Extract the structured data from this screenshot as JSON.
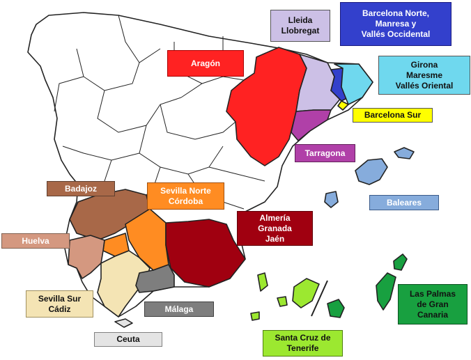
{
  "regions": [
    {
      "id": "lleida-llobregat",
      "label": "Lleida\nLlobregat",
      "color": "#ccc0e6"
    },
    {
      "id": "barcelona-norte",
      "label": "Barcelona Norte,\nManresa y\nVallés Occidental",
      "color": "#3340cc"
    },
    {
      "id": "aragon",
      "label": "Aragón",
      "color": "#ff2222"
    },
    {
      "id": "girona",
      "label": "Girona\nMaresme\nVallés Oriental",
      "color": "#6fd8ee"
    },
    {
      "id": "barcelona-sur",
      "label": "Barcelona Sur",
      "color": "#ffff00"
    },
    {
      "id": "tarragona",
      "label": "Tarragona",
      "color": "#b040a8"
    },
    {
      "id": "baleares",
      "label": "Baleares",
      "color": "#86acdc"
    },
    {
      "id": "badajoz",
      "label": "Badajoz",
      "color": "#a86848"
    },
    {
      "id": "sevilla-norte",
      "label": "Sevilla Norte\nCórdoba",
      "color": "#ff8c22"
    },
    {
      "id": "almeria",
      "label": "Almería\nGranada\nJaén",
      "color": "#a00010"
    },
    {
      "id": "huelva",
      "label": "Huelva",
      "color": "#d49880"
    },
    {
      "id": "sevilla-sur",
      "label": "Sevilla Sur\nCádiz",
      "color": "#f4e4b4"
    },
    {
      "id": "malaga",
      "label": "Málaga",
      "color": "#7e7e7e"
    },
    {
      "id": "ceuta",
      "label": "Ceuta",
      "color": "#e4e4e4"
    },
    {
      "id": "santa-cruz",
      "label": "Santa Cruz de\nTenerife",
      "color": "#9ce830"
    },
    {
      "id": "las-palmas",
      "label": "Las Palmas\nde Gran\nCanaria",
      "color": "#18a040"
    }
  ]
}
